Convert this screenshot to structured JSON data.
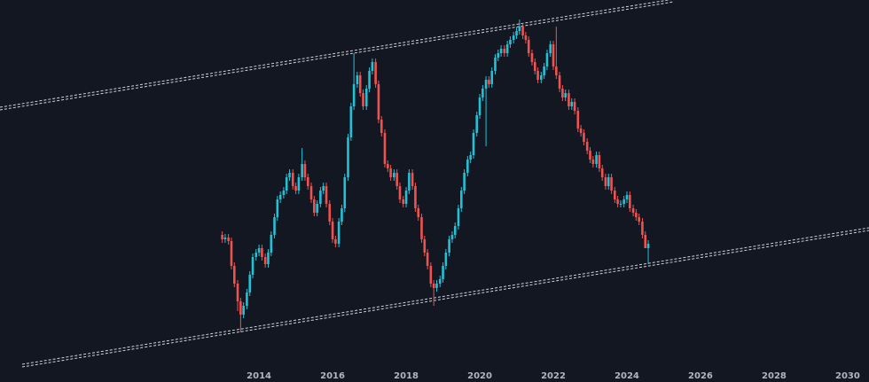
{
  "chart_data": {
    "type": "candlestick",
    "x": [
      2013.0,
      2013.08,
      2013.17,
      2013.25,
      2013.33,
      2013.42,
      2013.5,
      2013.58,
      2013.67,
      2013.75,
      2013.83,
      2013.92,
      2014.0,
      2014.08,
      2014.17,
      2014.25,
      2014.33,
      2014.42,
      2014.5,
      2014.58,
      2014.67,
      2014.75,
      2014.83,
      2014.92,
      2015.0,
      2015.08,
      2015.17,
      2015.25,
      2015.33,
      2015.42,
      2015.5,
      2015.58,
      2015.67,
      2015.75,
      2015.83,
      2015.92,
      2016.0,
      2016.08,
      2016.17,
      2016.25,
      2016.33,
      2016.42,
      2016.5,
      2016.58,
      2016.67,
      2016.75,
      2016.83,
      2016.92,
      2017.0,
      2017.08,
      2017.17,
      2017.25,
      2017.33,
      2017.42,
      2017.5,
      2017.58,
      2017.67,
      2017.75,
      2017.83,
      2017.92,
      2018.0,
      2018.08,
      2018.17,
      2018.25,
      2018.33,
      2018.42,
      2018.5,
      2018.58,
      2018.67,
      2018.75,
      2018.83,
      2018.92,
      2019.0,
      2019.08,
      2019.17,
      2019.25,
      2019.33,
      2019.42,
      2019.5,
      2019.58,
      2019.67,
      2019.75,
      2019.83,
      2019.92,
      2020.0,
      2020.08,
      2020.17,
      2020.25,
      2020.33,
      2020.42,
      2020.5,
      2020.58,
      2020.67,
      2020.75,
      2020.83,
      2020.92,
      2021.0,
      2021.08,
      2021.17,
      2021.25,
      2021.33,
      2021.42,
      2021.5,
      2021.58,
      2021.67,
      2021.75,
      2021.83,
      2021.92,
      2022.0,
      2022.08,
      2022.17,
      2022.25,
      2022.33,
      2022.42,
      2022.5,
      2022.58,
      2022.67,
      2022.75,
      2022.83,
      2022.92,
      2023.0,
      2023.08,
      2023.17,
      2023.25,
      2023.33,
      2023.42,
      2023.5,
      2023.58,
      2023.67,
      2023.75,
      2023.83,
      2023.92,
      2024.0,
      2024.08,
      2024.17,
      2024.25,
      2024.33,
      2024.42,
      2024.5,
      2024.58
    ],
    "open": [
      166,
      161,
      163,
      159,
      131,
      111,
      91,
      76,
      86,
      101,
      121,
      141,
      146,
      151,
      141,
      133,
      146,
      166,
      186,
      206,
      211,
      216,
      231,
      236,
      221,
      216,
      231,
      246,
      231,
      221,
      206,
      191,
      201,
      216,
      221,
      201,
      181,
      161,
      156,
      181,
      196,
      231,
      276,
      311,
      336,
      346,
      326,
      311,
      331,
      351,
      361,
      336,
      296,
      281,
      246,
      241,
      231,
      236,
      221,
      206,
      201,
      216,
      236,
      221,
      196,
      186,
      161,
      146,
      131,
      111,
      106,
      111,
      116,
      131,
      146,
      161,
      166,
      176,
      196,
      216,
      236,
      251,
      256,
      281,
      301,
      321,
      331,
      341,
      336,
      351,
      366,
      371,
      376,
      371,
      381,
      386,
      391,
      396,
      401,
      391,
      386,
      371,
      361,
      351,
      341,
      346,
      356,
      371,
      381,
      356,
      346,
      331,
      321,
      326,
      311,
      316,
      306,
      286,
      281,
      271,
      261,
      251,
      246,
      256,
      241,
      231,
      221,
      231,
      216,
      206,
      201,
      201,
      206,
      211,
      196,
      191,
      186,
      181,
      166,
      151
    ],
    "high": [
      170,
      167,
      167,
      163,
      135,
      115,
      95,
      90,
      105,
      125,
      145,
      150,
      155,
      155,
      145,
      150,
      170,
      190,
      210,
      215,
      220,
      235,
      240,
      240,
      225,
      235,
      264,
      250,
      235,
      225,
      210,
      205,
      220,
      225,
      225,
      205,
      185,
      165,
      185,
      200,
      235,
      280,
      315,
      371,
      350,
      350,
      330,
      335,
      355,
      365,
      365,
      340,
      300,
      285,
      250,
      245,
      240,
      240,
      225,
      210,
      220,
      240,
      240,
      225,
      200,
      190,
      165,
      150,
      135,
      115,
      115,
      120,
      135,
      150,
      165,
      170,
      180,
      200,
      220,
      240,
      255,
      260,
      285,
      305,
      325,
      335,
      345,
      345,
      355,
      370,
      375,
      380,
      380,
      385,
      390,
      395,
      400,
      409,
      405,
      395,
      390,
      375,
      365,
      355,
      350,
      360,
      375,
      385,
      385,
      401,
      350,
      335,
      330,
      330,
      320,
      320,
      310,
      290,
      285,
      275,
      265,
      255,
      260,
      260,
      245,
      235,
      235,
      235,
      220,
      210,
      205,
      210,
      215,
      215,
      200,
      195,
      190,
      185,
      170,
      160
    ],
    "low": [
      157,
      157,
      155,
      127,
      107,
      80,
      56,
      72,
      82,
      97,
      117,
      137,
      142,
      137,
      129,
      129,
      142,
      162,
      182,
      202,
      207,
      212,
      227,
      217,
      212,
      212,
      227,
      227,
      217,
      202,
      187,
      187,
      197,
      212,
      197,
      177,
      157,
      152,
      152,
      177,
      192,
      227,
      272,
      307,
      332,
      322,
      307,
      307,
      327,
      347,
      332,
      292,
      277,
      242,
      237,
      227,
      227,
      217,
      202,
      197,
      197,
      212,
      217,
      192,
      182,
      157,
      142,
      127,
      107,
      86,
      102,
      107,
      112,
      127,
      142,
      157,
      162,
      172,
      192,
      212,
      232,
      247,
      252,
      277,
      297,
      317,
      266,
      332,
      332,
      347,
      362,
      367,
      367,
      367,
      377,
      382,
      387,
      392,
      387,
      382,
      367,
      357,
      347,
      337,
      337,
      342,
      352,
      367,
      352,
      342,
      327,
      317,
      317,
      307,
      307,
      302,
      282,
      277,
      267,
      257,
      247,
      242,
      242,
      237,
      227,
      217,
      217,
      212,
      202,
      197,
      197,
      197,
      202,
      192,
      187,
      182,
      177,
      162,
      152,
      133
    ],
    "close": [
      161,
      163,
      159,
      131,
      111,
      91,
      76,
      86,
      101,
      121,
      141,
      146,
      151,
      141,
      133,
      146,
      166,
      186,
      206,
      211,
      216,
      231,
      236,
      221,
      216,
      231,
      246,
      231,
      221,
      206,
      191,
      201,
      216,
      221,
      201,
      181,
      161,
      156,
      181,
      196,
      231,
      276,
      311,
      336,
      346,
      326,
      311,
      331,
      351,
      361,
      336,
      296,
      281,
      246,
      241,
      231,
      236,
      221,
      206,
      201,
      216,
      236,
      221,
      196,
      186,
      161,
      146,
      131,
      111,
      106,
      111,
      116,
      131,
      146,
      161,
      166,
      176,
      196,
      216,
      236,
      251,
      256,
      281,
      301,
      321,
      331,
      341,
      336,
      351,
      366,
      371,
      376,
      371,
      381,
      386,
      391,
      396,
      401,
      391,
      386,
      371,
      361,
      351,
      341,
      346,
      356,
      371,
      381,
      356,
      346,
      331,
      321,
      326,
      311,
      316,
      306,
      286,
      281,
      271,
      261,
      251,
      246,
      256,
      241,
      231,
      221,
      231,
      216,
      206,
      201,
      201,
      206,
      211,
      196,
      191,
      186,
      181,
      166,
      151,
      156
    ],
    "up_color": "#22c1d6",
    "down_color": "#ef5350",
    "xlim": [
      2006.96,
      2030.58
    ],
    "xticks": [
      2014,
      2016,
      2018,
      2020,
      2022,
      2024,
      2026,
      2028,
      2030
    ],
    "ylim": [
      0,
      431
    ]
  }
}
